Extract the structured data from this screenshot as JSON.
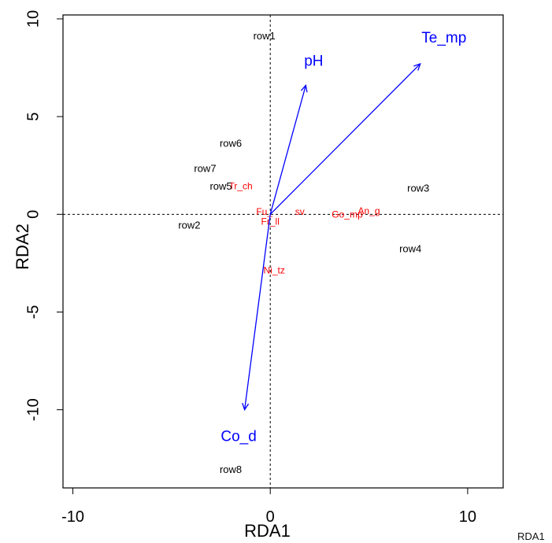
{
  "chart_data": {
    "type": "biplot",
    "xlabel": "RDA1",
    "ylabel": "RDA2",
    "xlim": [
      -10.5,
      11.8
    ],
    "ylim": [
      -14,
      10.2
    ],
    "x_ticks": [
      -10,
      0,
      10
    ],
    "y_ticks": [
      10,
      5,
      0,
      -5,
      -10
    ],
    "x_tick_labels": [
      "-10",
      "0",
      "10"
    ],
    "y_tick_labels": [
      "10",
      "5",
      "0",
      "-5",
      "-10"
    ],
    "grid": false,
    "reference_lines": [
      {
        "axis": "x",
        "value": 0,
        "style": "dotted"
      },
      {
        "axis": "y",
        "value": 0,
        "style": "dotted"
      }
    ],
    "sites": [
      {
        "label": "row1",
        "x": -0.3,
        "y": 9.1
      },
      {
        "label": "row6",
        "x": -2.0,
        "y": 3.6
      },
      {
        "label": "row7",
        "x": -3.3,
        "y": 2.3
      },
      {
        "label": "row5",
        "x": -2.5,
        "y": 1.4
      },
      {
        "label": "row2",
        "x": -4.1,
        "y": -0.6
      },
      {
        "label": "row3",
        "x": 7.5,
        "y": 1.3
      },
      {
        "label": "row4",
        "x": 7.1,
        "y": -1.8
      },
      {
        "label": "row8",
        "x": -2.0,
        "y": -13.1
      }
    ],
    "species": [
      {
        "label": "Tr_ch",
        "x": -1.5,
        "y": 1.4
      },
      {
        "label": "Fu_",
        "x": -0.3,
        "y": 0.1
      },
      {
        "label": "sv",
        "x": 1.5,
        "y": 0.1
      },
      {
        "label": "Go_mp",
        "x": 3.9,
        "y": -0.05
      },
      {
        "label": "An_g",
        "x": 5.0,
        "y": 0.15
      },
      {
        "label": "Ni_tz",
        "x": 0.2,
        "y": -2.9
      },
      {
        "label": "Fr_ll",
        "x": 0.0,
        "y": -0.4
      }
    ],
    "environment_vectors": [
      {
        "label": "pH",
        "x": 1.8,
        "y": 6.6,
        "label_x": 2.2,
        "label_y": 7.8
      },
      {
        "label": "Te_mp",
        "x": 7.6,
        "y": 7.7,
        "label_x": 8.8,
        "label_y": 9.0
      },
      {
        "label": "Co_d",
        "x": -1.3,
        "y": -10.0,
        "label_x": -1.6,
        "label_y": -11.4
      }
    ],
    "colors": {
      "sites": "#000000",
      "species": "#ff0000",
      "vectors": "#0000ff",
      "axis": "#000000"
    }
  },
  "corner_label": "RDA1"
}
